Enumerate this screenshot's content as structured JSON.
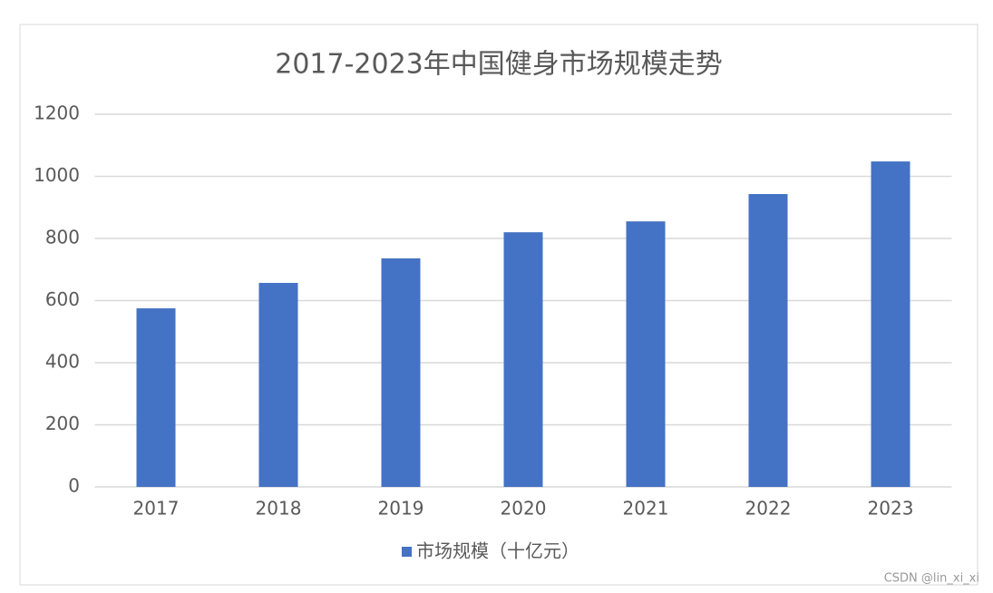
{
  "chart_data": {
    "type": "bar",
    "title": "2017-2023年中国健身市场规模走势",
    "categories": [
      "2017",
      "2018",
      "2019",
      "2020",
      "2021",
      "2022",
      "2023"
    ],
    "series": [
      {
        "name": "市场规模（十亿元）",
        "color": "#4472c4",
        "values": [
          575,
          657,
          736,
          820,
          855,
          943,
          1048
        ]
      }
    ],
    "ylim": [
      0,
      1200
    ],
    "yticks": [
      0,
      200,
      400,
      600,
      800,
      1000,
      1200
    ],
    "grid": true,
    "legend": "bottom",
    "watermark": "CSDN @lin_xi_xi"
  }
}
